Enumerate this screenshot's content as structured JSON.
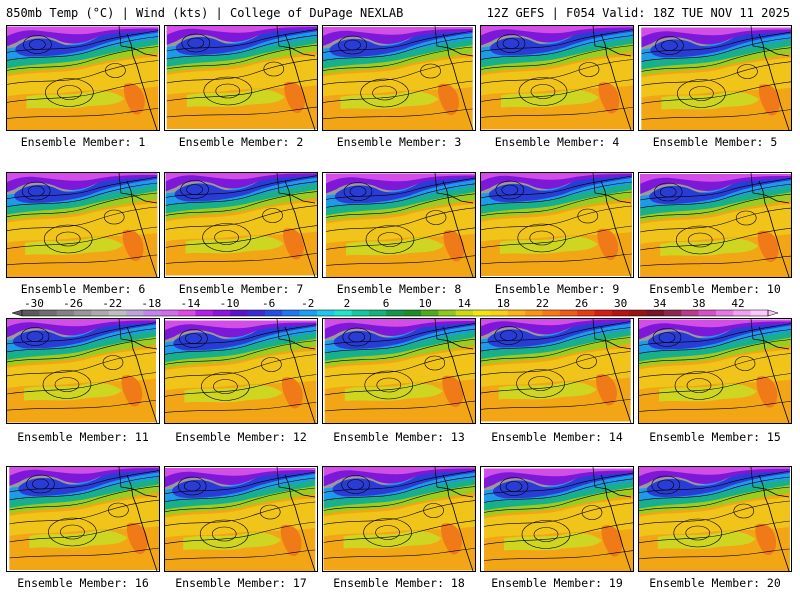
{
  "header": {
    "left": "850mb Temp (°C) | Wind (kts) | College of DuPage NEXLAB",
    "right": "12Z GEFS | F054 Valid: 18Z TUE NOV 11 2025"
  },
  "caption_prefix": "Ensemble Member: ",
  "members": [
    1,
    2,
    3,
    4,
    5,
    6,
    7,
    8,
    9,
    10,
    11,
    12,
    13,
    14,
    15,
    16,
    17,
    18,
    19,
    20
  ],
  "colorbar": {
    "labels": [
      "-30",
      "-26",
      "-22",
      "-18",
      "-14",
      "-10",
      "-6",
      "-2",
      "2",
      "6",
      "10",
      "14",
      "18",
      "22",
      "26",
      "30",
      "34",
      "38",
      "42"
    ],
    "colors": [
      "#5a5a5a",
      "#6e6e6e",
      "#828282",
      "#969696",
      "#aaaaaa",
      "#bebebe",
      "#b9a6d8",
      "#c087e8",
      "#d26ce8",
      "#e048e6",
      "#b41ee6",
      "#8c14dc",
      "#5a14c8",
      "#3a2cd2",
      "#2450e0",
      "#1e78f0",
      "#1ea0f0",
      "#1ec8e6",
      "#1ee6c8",
      "#14c8a0",
      "#14b478",
      "#149650",
      "#1e8c28",
      "#50aa1e",
      "#8cc81e",
      "#c8dc14",
      "#f0e614",
      "#fad214",
      "#fab414",
      "#fa9614",
      "#fa7814",
      "#f05a14",
      "#e63c14",
      "#d21e14",
      "#b41414",
      "#961414",
      "#781428",
      "#8c2850",
      "#b43c8c",
      "#d250c8",
      "#e678e6",
      "#f0a0f0",
      "#fac8fa"
    ]
  }
}
